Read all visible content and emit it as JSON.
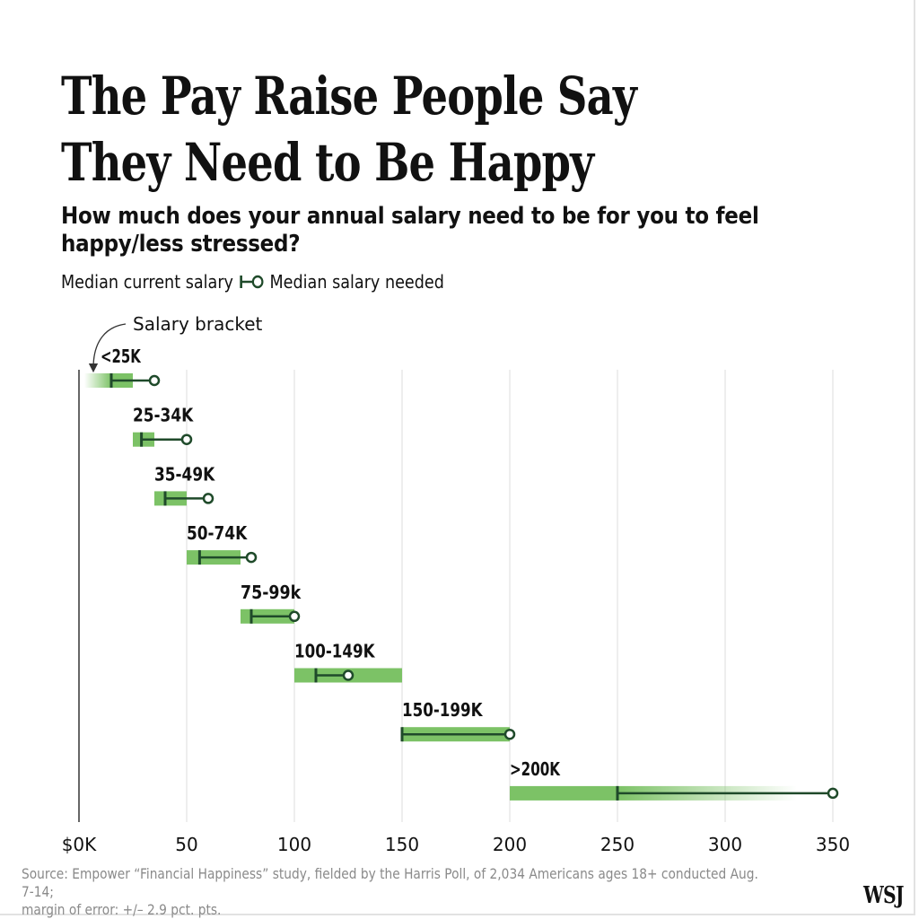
{
  "chart_data": {
    "type": "range-bar",
    "title": "The Pay Raise People Say They Need to Be Happy",
    "subtitle": "How much does your annual salary need to be for you to feel happy/less stressed?",
    "legend": {
      "current_label": "Median current salary",
      "needed_label": "Median salary needed",
      "placement": "top-left"
    },
    "annotation": "Salary bracket",
    "x_axis": {
      "ticks": [
        0,
        50,
        100,
        150,
        200,
        250,
        300,
        350
      ],
      "tick_labels": [
        "$0K",
        "50",
        "100",
        "150",
        "200",
        "250",
        "300",
        "350"
      ],
      "range": [
        0,
        350
      ],
      "units": "thousands of dollars"
    },
    "grid": true,
    "categories": [
      "<25K",
      "25-34K",
      "35-49K",
      "50-74K",
      "75-99k",
      "100-149K",
      "150-199K",
      ">200K"
    ],
    "bracket_ranges": [
      [
        0,
        25
      ],
      [
        25,
        35
      ],
      [
        35,
        50
      ],
      [
        50,
        75
      ],
      [
        75,
        100
      ],
      [
        100,
        150
      ],
      [
        150,
        200
      ],
      [
        200,
        250
      ]
    ],
    "bracket_open": [
      "left",
      "none",
      "none",
      "none",
      "none",
      "none",
      "none",
      "right"
    ],
    "series": [
      {
        "name": "Median current salary",
        "values": [
          15,
          29,
          40,
          56,
          80,
          110,
          150,
          250
        ]
      },
      {
        "name": "Median salary needed",
        "values": [
          35,
          50,
          60,
          80,
          100,
          125,
          200,
          350
        ]
      }
    ],
    "colors": {
      "bracket": "#7cc266",
      "line": "#1f4a2a",
      "grid": "#dcdcdc",
      "axis": "#333333"
    }
  },
  "source": {
    "line1": "Source: Empower “Financial Happiness” study, fielded by the Harris Poll, of 2,034 Americans ages 18+ conducted Aug. 7-14;",
    "line2": "margin of error: +/– 2.9 pct. pts."
  },
  "logo": "WSJ"
}
